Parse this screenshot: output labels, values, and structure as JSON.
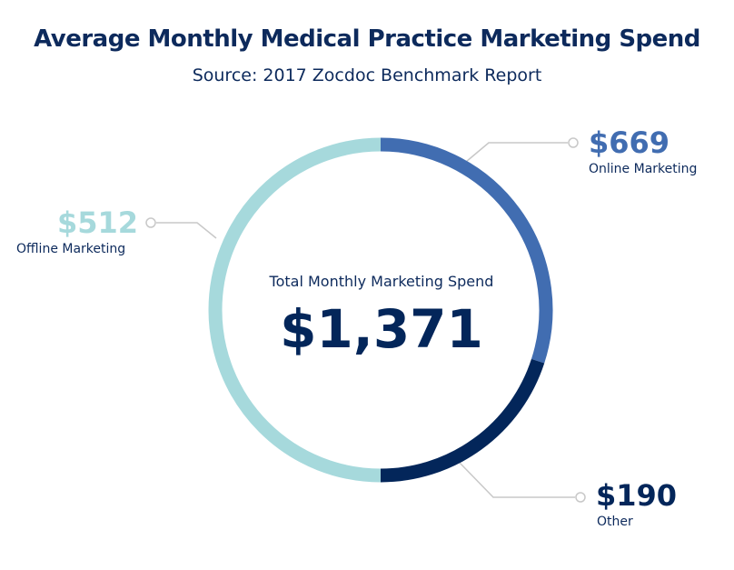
{
  "chart_data": {
    "type": "pie",
    "title": "Average Monthly Medical Practice Marketing Spend",
    "subtitle": "Source: 2017 Zocdoc Benchmark Report",
    "center_label": "Total Monthly Marketing Spend",
    "center_value": "$1,371",
    "total": 1371,
    "slices": [
      {
        "name": "Online Marketing",
        "value": 669,
        "display": "$669",
        "color": "#416db1"
      },
      {
        "name": "Other",
        "value": 190,
        "display": "$190",
        "color": "#03265a"
      },
      {
        "name": "Offline Marketing",
        "value": 512,
        "display": "$512",
        "color": "#a6d9dc"
      }
    ]
  }
}
